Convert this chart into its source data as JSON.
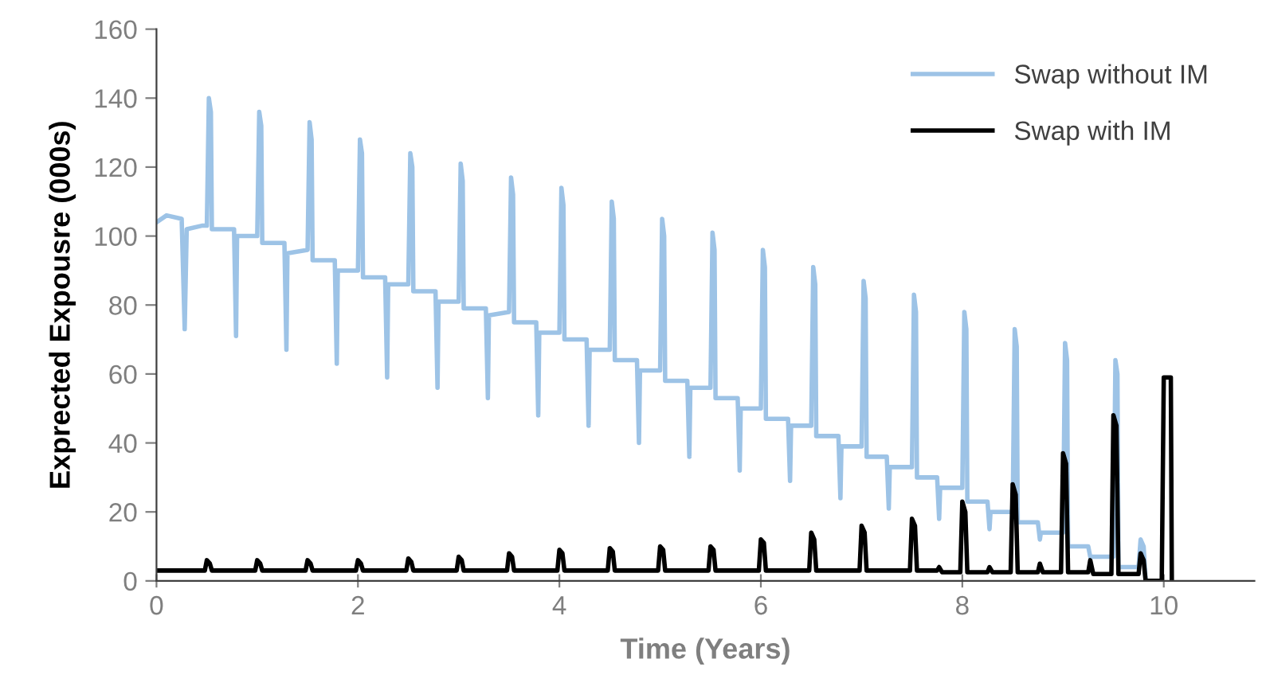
{
  "chart_data": {
    "type": "line",
    "xlabel": "Time (Years)",
    "ylabel": "Exprected Expousre (000s)",
    "xlim": [
      0,
      10.9
    ],
    "xticks": [
      0,
      2,
      4,
      6,
      8,
      10
    ],
    "ylim": [
      0,
      160
    ],
    "yticks": [
      0,
      20,
      40,
      60,
      80,
      100,
      120,
      140,
      160
    ],
    "grid": false,
    "legend": "top right",
    "marker": "none",
    "line_style": "solid",
    "series": [
      {
        "name": "Swap without IM",
        "color": "#9dc3e6",
        "x": [
          0,
          0.1,
          0.25,
          0.28,
          0.3,
          0.45,
          0.5,
          0.52,
          0.54,
          0.55,
          0.77,
          0.79,
          0.8,
          1.0,
          1.02,
          1.04,
          1.05,
          1.27,
          1.29,
          1.3,
          1.5,
          1.52,
          1.54,
          1.55,
          1.77,
          1.79,
          1.8,
          2.0,
          2.02,
          2.04,
          2.05,
          2.27,
          2.29,
          2.3,
          2.5,
          2.52,
          2.54,
          2.55,
          2.77,
          2.79,
          2.8,
          3.0,
          3.02,
          3.04,
          3.05,
          3.27,
          3.29,
          3.3,
          3.5,
          3.52,
          3.54,
          3.55,
          3.77,
          3.79,
          3.8,
          4.0,
          4.02,
          4.04,
          4.05,
          4.27,
          4.29,
          4.3,
          4.5,
          4.52,
          4.54,
          4.55,
          4.77,
          4.79,
          4.8,
          5.0,
          5.02,
          5.04,
          5.05,
          5.27,
          5.29,
          5.3,
          5.5,
          5.52,
          5.54,
          5.55,
          5.77,
          5.79,
          5.8,
          6.0,
          6.02,
          6.04,
          6.05,
          6.27,
          6.29,
          6.3,
          6.5,
          6.52,
          6.54,
          6.55,
          6.77,
          6.79,
          6.8,
          7.0,
          7.02,
          7.04,
          7.05,
          7.25,
          7.27,
          7.28,
          7.5,
          7.52,
          7.54,
          7.55,
          7.75,
          7.77,
          7.78,
          8.0,
          8.02,
          8.04,
          8.05,
          8.25,
          8.27,
          8.28,
          8.5,
          8.52,
          8.54,
          8.55,
          8.75,
          8.77,
          8.78,
          9.0,
          9.02,
          9.04,
          9.05,
          9.25,
          9.27,
          9.5,
          9.52,
          9.54,
          9.55,
          9.75,
          9.77,
          9.8,
          9.82
        ],
        "values": [
          104,
          106,
          105,
          73,
          102,
          103,
          103,
          140,
          136,
          102,
          102,
          71,
          100,
          100,
          136,
          132,
          98,
          98,
          67,
          95,
          96,
          133,
          128,
          93,
          93,
          63,
          90,
          90,
          128,
          124,
          88,
          88,
          59,
          86,
          86,
          124,
          120,
          84,
          84,
          56,
          81,
          81,
          121,
          116,
          79,
          79,
          53,
          77,
          78,
          117,
          112,
          75,
          75,
          48,
          72,
          72,
          114,
          109,
          70,
          70,
          45,
          67,
          67,
          110,
          105,
          64,
          64,
          40,
          61,
          61,
          105,
          100,
          58,
          58,
          36,
          56,
          56,
          101,
          96,
          53,
          53,
          32,
          50,
          50,
          96,
          91,
          47,
          47,
          29,
          45,
          45,
          91,
          86,
          42,
          42,
          24,
          39,
          39,
          87,
          82,
          36,
          36,
          21,
          33,
          33,
          83,
          78,
          30,
          30,
          18,
          27,
          27,
          78,
          73,
          23,
          23,
          15,
          20,
          20,
          73,
          68,
          17,
          17,
          12,
          14,
          14,
          69,
          64,
          10,
          10,
          7,
          7,
          64,
          60,
          4,
          4,
          12,
          10,
          0
        ]
      },
      {
        "name": "Swap with IM",
        "color": "#000000",
        "x": [
          0,
          0.48,
          0.5,
          0.53,
          0.55,
          0.98,
          1.0,
          1.03,
          1.05,
          1.48,
          1.5,
          1.53,
          1.55,
          1.98,
          2.0,
          2.03,
          2.05,
          2.48,
          2.5,
          2.53,
          2.55,
          2.98,
          3.0,
          3.03,
          3.05,
          3.48,
          3.5,
          3.53,
          3.55,
          3.98,
          4.0,
          4.03,
          4.05,
          4.48,
          4.5,
          4.53,
          4.55,
          4.98,
          5.0,
          5.03,
          5.05,
          5.48,
          5.5,
          5.53,
          5.55,
          5.98,
          6.0,
          6.03,
          6.05,
          6.48,
          6.5,
          6.53,
          6.55,
          6.98,
          7.0,
          7.03,
          7.05,
          7.48,
          7.5,
          7.53,
          7.55,
          7.75,
          7.77,
          7.8,
          7.98,
          8.0,
          8.03,
          8.05,
          8.25,
          8.27,
          8.3,
          8.48,
          8.5,
          8.53,
          8.55,
          8.75,
          8.77,
          8.8,
          8.98,
          9.0,
          9.03,
          9.05,
          9.25,
          9.27,
          9.3,
          9.48,
          9.5,
          9.53,
          9.55,
          9.75,
          9.77,
          9.8,
          9.82,
          9.98,
          10.0,
          10.07,
          10.08
        ],
        "values": [
          3,
          3,
          6,
          5,
          3,
          3,
          6,
          5,
          3,
          3,
          6,
          5,
          3,
          3,
          6,
          5,
          3,
          3,
          6.5,
          5.5,
          3,
          3,
          7,
          6,
          3,
          3,
          8,
          7,
          3,
          3,
          9,
          8,
          3,
          3,
          9.5,
          8.5,
          3,
          3,
          10,
          9,
          3,
          3,
          10,
          9,
          3,
          3,
          12,
          11,
          3,
          3,
          14,
          12,
          3,
          3,
          16,
          14,
          3,
          3,
          18,
          16,
          3,
          3,
          4,
          2.5,
          2.5,
          23,
          20,
          2.5,
          2.5,
          4,
          2.5,
          2.5,
          28,
          25,
          2.5,
          2.5,
          5,
          2.5,
          2.5,
          37,
          34,
          2.5,
          2.5,
          6,
          2,
          2,
          48,
          45,
          2,
          2,
          8,
          6,
          0,
          0,
          59,
          59,
          0
        ]
      }
    ]
  }
}
